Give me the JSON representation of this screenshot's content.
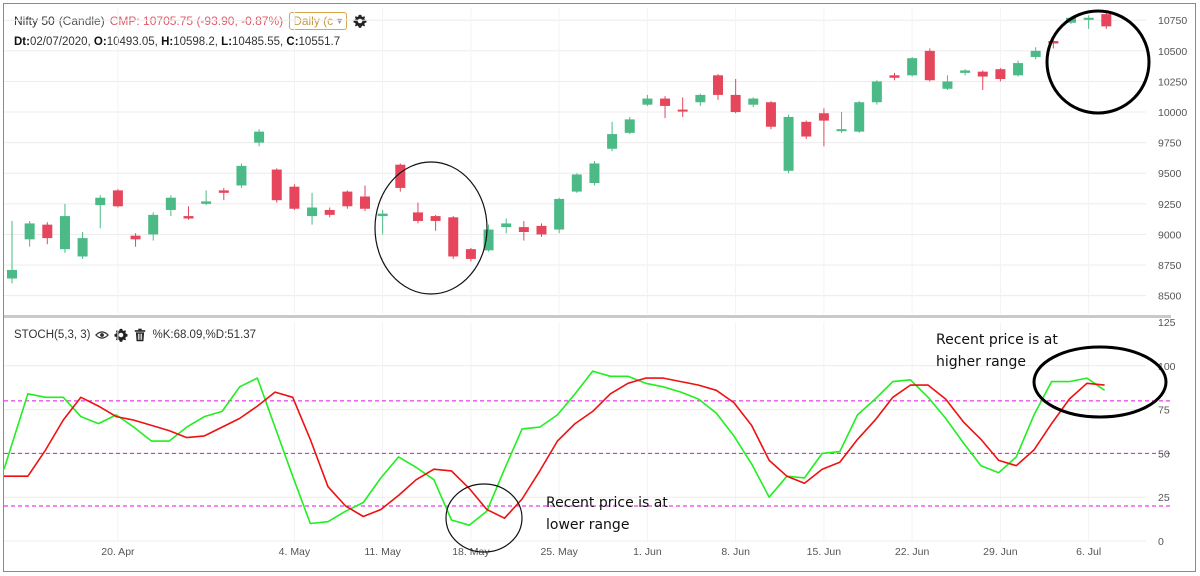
{
  "header": {
    "symbol": "Nifty 50",
    "chart_type": "(Candle)",
    "cmp": "CMP: 10705.75 (-93.90, -0.87%)",
    "timeframe": "Daily (c",
    "settings_icon": "gear-icon"
  },
  "ohlc": {
    "dt_label": "Dt:",
    "dt": "02/07/2020, ",
    "o_label": "O:",
    "o": "10493.05, ",
    "h_label": "H:",
    "h": "10598.2, ",
    "l_label": "L:",
    "l": "10485.55, ",
    "c_label": "C:",
    "c": "10551.7"
  },
  "indicator": {
    "label": "STOCH(5,3, 3)",
    "values": "%K:68.09,%D:51.37",
    "icons": [
      "eye-icon",
      "gear-icon",
      "trash-icon"
    ]
  },
  "annotations": {
    "low_line1": "Recent price is at",
    "low_line2": "lower range",
    "high_line1": "Recent price is at",
    "high_line2": "higher range"
  },
  "colors": {
    "bull": "#4cba86",
    "bear": "#e5465b",
    "k_line": "#22ee22",
    "d_line": "#ee1111",
    "level_line": "#e011e0"
  },
  "chart_data": [
    {
      "type": "candlestick",
      "ylim": [
        8350,
        10850
      ],
      "yticks": [
        "10750",
        "10500",
        "10250",
        "10000",
        "9750",
        "9500",
        "9250",
        "9000",
        "8750",
        "8500"
      ],
      "xticks": [
        "20. Apr",
        "4. May",
        "11. May",
        "18. May",
        "25. May",
        "1. Jun",
        "8. Jun",
        "15. Jun",
        "22. Jun",
        "29. Jun",
        "6. Jul"
      ],
      "xtick_index": [
        6,
        16,
        21,
        26,
        31,
        36,
        41,
        46,
        51,
        56,
        61
      ],
      "candles": [
        {
          "o": 8640,
          "c": 8710,
          "h": 9110,
          "l": 8600
        },
        {
          "o": 8960,
          "c": 9090,
          "h": 9110,
          "l": 8900
        },
        {
          "o": 9080,
          "c": 8970,
          "h": 9100,
          "l": 8920
        },
        {
          "o": 8880,
          "c": 9150,
          "h": 9250,
          "l": 8850
        },
        {
          "o": 8820,
          "c": 8970,
          "h": 9020,
          "l": 8800
        },
        {
          "o": 9240,
          "c": 9300,
          "h": 9320,
          "l": 9050
        },
        {
          "o": 9360,
          "c": 9230,
          "h": 9370,
          "l": 9220
        },
        {
          "o": 8990,
          "c": 8960,
          "h": 9010,
          "l": 8900
        },
        {
          "o": 9000,
          "c": 9160,
          "h": 9180,
          "l": 8950
        },
        {
          "o": 9200,
          "c": 9300,
          "h": 9320,
          "l": 9150
        },
        {
          "o": 9150,
          "c": 9130,
          "h": 9230,
          "l": 9120
        },
        {
          "o": 9250,
          "c": 9270,
          "h": 9360,
          "l": 9240
        },
        {
          "o": 9360,
          "c": 9340,
          "h": 9380,
          "l": 9280
        },
        {
          "o": 9400,
          "c": 9560,
          "h": 9580,
          "l": 9380
        },
        {
          "o": 9750,
          "c": 9840,
          "h": 9860,
          "l": 9720
        },
        {
          "o": 9530,
          "c": 9280,
          "h": 9540,
          "l": 9260
        },
        {
          "o": 9390,
          "c": 9210,
          "h": 9410,
          "l": 9200
        },
        {
          "o": 9150,
          "c": 9220,
          "h": 9340,
          "l": 9080
        },
        {
          "o": 9200,
          "c": 9160,
          "h": 9220,
          "l": 9140
        },
        {
          "o": 9350,
          "c": 9230,
          "h": 9360,
          "l": 9210
        },
        {
          "o": 9310,
          "c": 9210,
          "h": 9400,
          "l": 9190
        },
        {
          "o": 9150,
          "c": 9170,
          "h": 9200,
          "l": 9000
        },
        {
          "o": 9570,
          "c": 9380,
          "h": 9580,
          "l": 9350
        },
        {
          "o": 9180,
          "c": 9110,
          "h": 9260,
          "l": 9090
        },
        {
          "o": 9150,
          "c": 9110,
          "h": 9160,
          "l": 9030
        },
        {
          "o": 9140,
          "c": 8820,
          "h": 9150,
          "l": 8800
        },
        {
          "o": 8880,
          "c": 8800,
          "h": 8890,
          "l": 8780
        },
        {
          "o": 8870,
          "c": 9040,
          "h": 9080,
          "l": 8860
        },
        {
          "o": 9060,
          "c": 9090,
          "h": 9130,
          "l": 9010
        },
        {
          "o": 9060,
          "c": 9020,
          "h": 9110,
          "l": 8950
        },
        {
          "o": 9070,
          "c": 9000,
          "h": 9090,
          "l": 8980
        },
        {
          "o": 9040,
          "c": 9290,
          "h": 9300,
          "l": 9010
        },
        {
          "o": 9350,
          "c": 9490,
          "h": 9500,
          "l": 9340
        },
        {
          "o": 9420,
          "c": 9580,
          "h": 9600,
          "l": 9400
        },
        {
          "o": 9700,
          "c": 9820,
          "h": 9920,
          "l": 9680
        },
        {
          "o": 9830,
          "c": 9940,
          "h": 9960,
          "l": 9820
        },
        {
          "o": 10060,
          "c": 10110,
          "h": 10140,
          "l": 10050
        },
        {
          "o": 10110,
          "c": 10050,
          "h": 10130,
          "l": 9950
        },
        {
          "o": 10020,
          "c": 10010,
          "h": 10120,
          "l": 9960
        },
        {
          "o": 10080,
          "c": 10140,
          "h": 10150,
          "l": 10050
        },
        {
          "o": 10300,
          "c": 10140,
          "h": 10310,
          "l": 10100
        },
        {
          "o": 10140,
          "c": 10000,
          "h": 10270,
          "l": 9990
        },
        {
          "o": 10060,
          "c": 10110,
          "h": 10120,
          "l": 10040
        },
        {
          "o": 10080,
          "c": 9880,
          "h": 10090,
          "l": 9860
        },
        {
          "o": 9520,
          "c": 9960,
          "h": 9980,
          "l": 9500
        },
        {
          "o": 9920,
          "c": 9800,
          "h": 9930,
          "l": 9780
        },
        {
          "o": 9990,
          "c": 9930,
          "h": 10030,
          "l": 9720
        },
        {
          "o": 9850,
          "c": 9860,
          "h": 10000,
          "l": 9830
        },
        {
          "o": 9840,
          "c": 10080,
          "h": 10090,
          "l": 9830
        },
        {
          "o": 10080,
          "c": 10250,
          "h": 10260,
          "l": 10060
        },
        {
          "o": 10300,
          "c": 10280,
          "h": 10320,
          "l": 10260
        },
        {
          "o": 10300,
          "c": 10440,
          "h": 10450,
          "l": 10290
        },
        {
          "o": 10500,
          "c": 10260,
          "h": 10520,
          "l": 10250
        },
        {
          "o": 10190,
          "c": 10250,
          "h": 10300,
          "l": 10180
        },
        {
          "o": 10320,
          "c": 10340,
          "h": 10350,
          "l": 10300
        },
        {
          "o": 10330,
          "c": 10290,
          "h": 10340,
          "l": 10180
        },
        {
          "o": 10350,
          "c": 10270,
          "h": 10360,
          "l": 10250
        },
        {
          "o": 10300,
          "c": 10400,
          "h": 10420,
          "l": 10290
        },
        {
          "o": 10450,
          "c": 10500,
          "h": 10530,
          "l": 10430
        },
        {
          "o": 10580,
          "c": 10560,
          "h": 10590,
          "l": 10520
        },
        {
          "o": 10730,
          "c": 10770,
          "h": 10780,
          "l": 10720
        },
        {
          "o": 10760,
          "c": 10770,
          "h": 10790,
          "l": 10680
        },
        {
          "o": 10800,
          "c": 10700,
          "h": 10810,
          "l": 10680
        }
      ]
    },
    {
      "type": "line",
      "ylim": [
        0,
        125
      ],
      "yticks": [
        "125",
        "100",
        "75",
        "50",
        "25",
        "0"
      ],
      "levels": [
        80,
        50,
        20
      ],
      "series": [
        {
          "name": "%K",
          "values": [
            41,
            84,
            82,
            82,
            71,
            67,
            72,
            65,
            57,
            57,
            65,
            71,
            74,
            88,
            93,
            65,
            37,
            10,
            11,
            17,
            22,
            36,
            48,
            42,
            35,
            12,
            9,
            17,
            41,
            64,
            65,
            72,
            84,
            97,
            94,
            94,
            90,
            88,
            85,
            81,
            73,
            60,
            44,
            25,
            37,
            36,
            50,
            51,
            72,
            81,
            91,
            92,
            82,
            70,
            56,
            43,
            39,
            48,
            72,
            91,
            91,
            93,
            86
          ]
        },
        {
          "name": "%D",
          "values": [
            37,
            37,
            52,
            69,
            82,
            77,
            71,
            69,
            66,
            63,
            59,
            60,
            65,
            70,
            77,
            85,
            82,
            58,
            31,
            20,
            14,
            18,
            26,
            35,
            41,
            40,
            30,
            18,
            13,
            24,
            40,
            57,
            67,
            74,
            84,
            90,
            93,
            93,
            91,
            89,
            86,
            79,
            66,
            46,
            37,
            33,
            41,
            45,
            58,
            69,
            82,
            89,
            89,
            81,
            68,
            58,
            46,
            43,
            52,
            67,
            81,
            90,
            89
          ]
        }
      ]
    }
  ]
}
